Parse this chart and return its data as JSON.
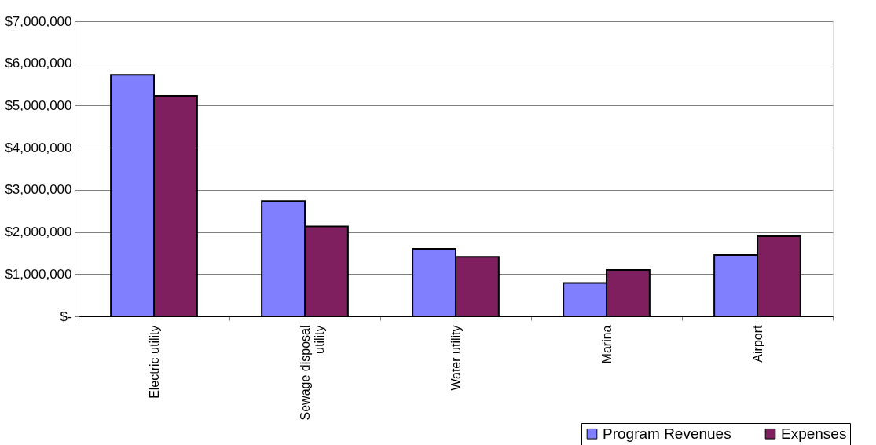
{
  "chart_data": {
    "type": "bar",
    "categories": [
      "Electric utility",
      "Sewage disposal utility",
      "Water utility",
      "Marina",
      "Airport"
    ],
    "series": [
      {
        "name": "Program Revenues",
        "color": "#8080ff",
        "values": [
          5730000,
          2730000,
          1600000,
          790000,
          1450000
        ]
      },
      {
        "name": "Expenses",
        "color": "#7f1f5f",
        "values": [
          5230000,
          2130000,
          1410000,
          1100000,
          1900000
        ]
      }
    ],
    "ylim": [
      0,
      7000000
    ],
    "yticks": [
      {
        "value": 0,
        "label": "$-"
      },
      {
        "value": 1000000,
        "label": "$1,000,000"
      },
      {
        "value": 2000000,
        "label": "$2,000,000"
      },
      {
        "value": 3000000,
        "label": "$3,000,000"
      },
      {
        "value": 4000000,
        "label": "$4,000,000"
      },
      {
        "value": 5000000,
        "label": "$5,000,000"
      },
      {
        "value": 6000000,
        "label": "$6,000,000"
      },
      {
        "value": 7000000,
        "label": "$7,000,000"
      }
    ],
    "grid": "y",
    "legend": "bottom right"
  }
}
